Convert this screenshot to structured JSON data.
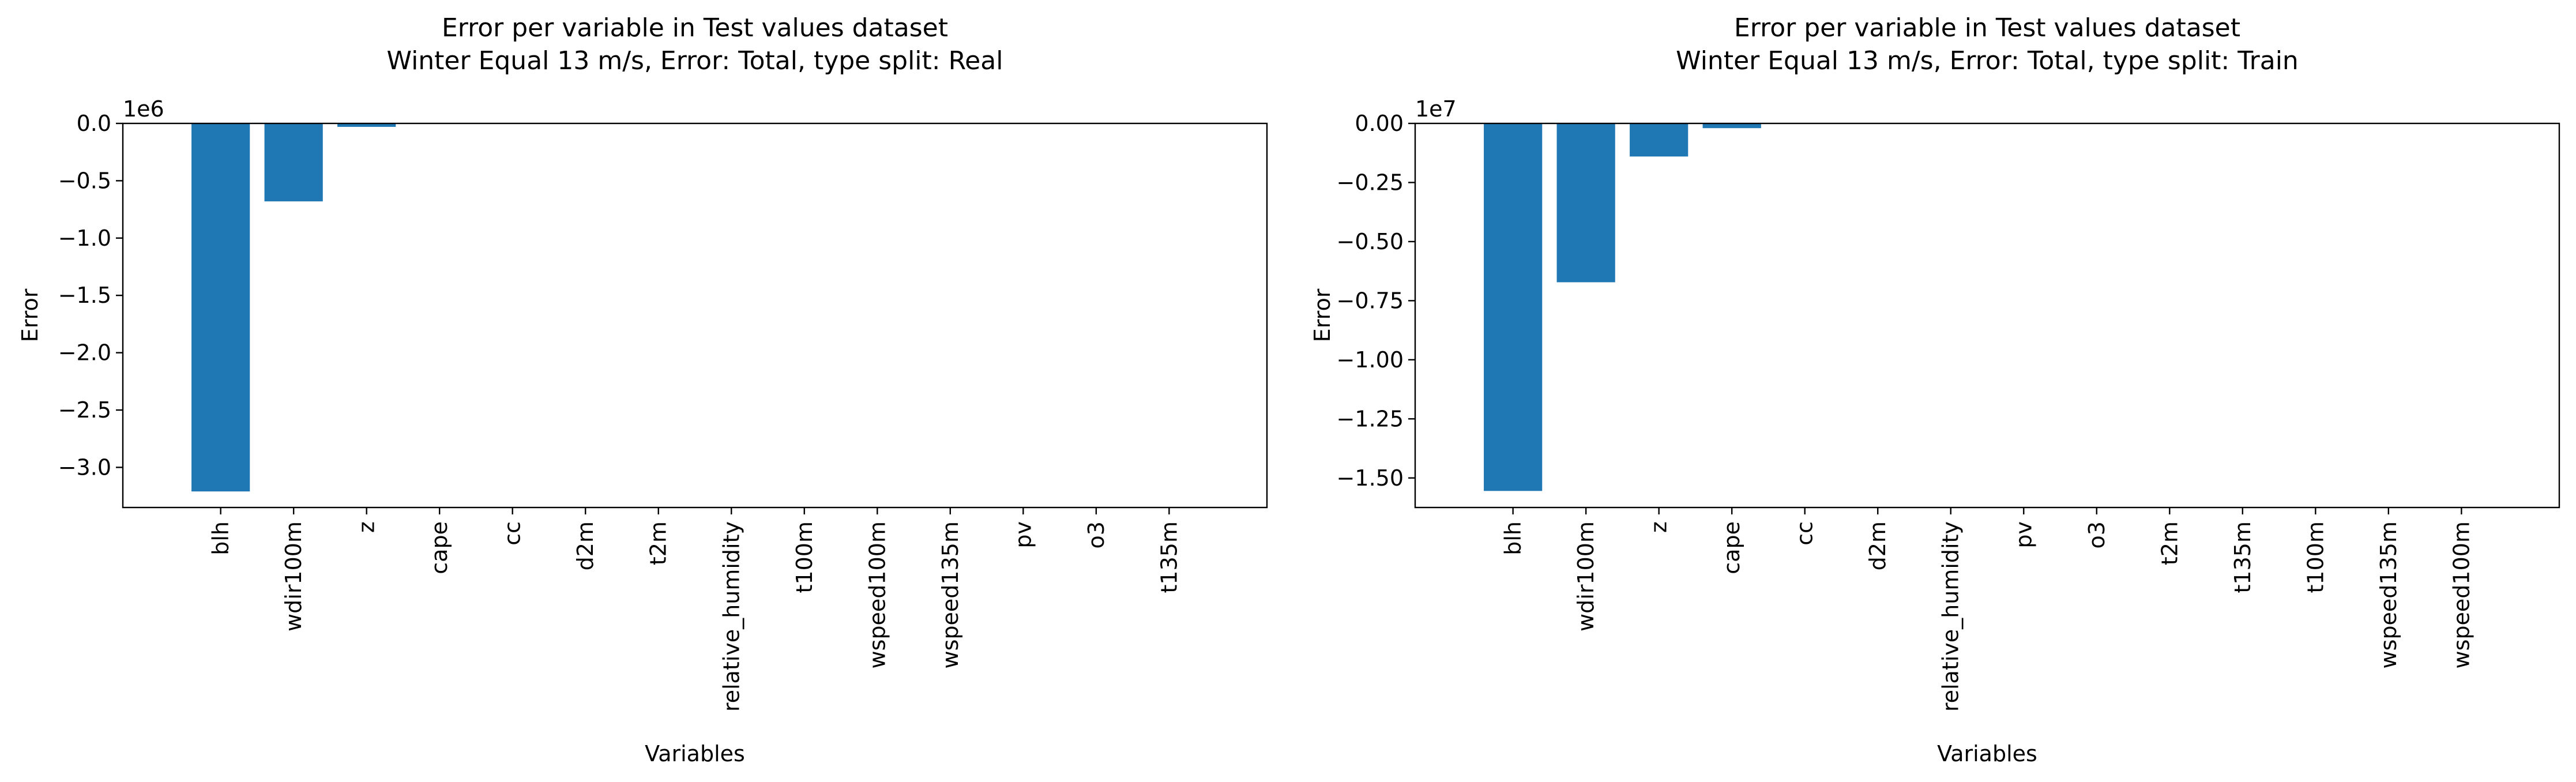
{
  "chart_data": [
    {
      "type": "bar",
      "title": "Error per variable in Test values dataset",
      "subtitle": "Winter Equal 13 m/s, Error: Total, type split: Real",
      "xlabel": "Variables",
      "ylabel": "Error",
      "y_offset_label": "1e6",
      "ylim": [
        -3.35,
        0.0
      ],
      "yticks": [
        0.0,
        -0.5,
        -1.0,
        -1.5,
        -2.0,
        -2.5,
        -3.0
      ],
      "ytick_labels": [
        "0.0",
        "−0.5",
        "−1.0",
        "−1.5",
        "−2.0",
        "−2.5",
        "−3.0"
      ],
      "categories": [
        "blh",
        "wdir100m",
        "z",
        "cape",
        "cc",
        "d2m",
        "t2m",
        "relative_humidity",
        "t100m",
        "wspeed100m",
        "wspeed135m",
        "pv",
        "o3",
        "t135m"
      ],
      "values": [
        -3.21,
        -0.68,
        -0.03,
        -0.001,
        -0.0008,
        -0.0005,
        -0.0003,
        -0.0002,
        -0.0002,
        -0.0001,
        -0.0001,
        -5e-05,
        -3e-05,
        -2e-05
      ],
      "bar_color": "#1f77b4",
      "grid": false
    },
    {
      "type": "bar",
      "title": "Error per variable in Test values dataset",
      "subtitle": "Winter Equal 13 m/s, Error: Total, type split: Train",
      "xlabel": "Variables",
      "ylabel": "Error",
      "y_offset_label": "1e7",
      "ylim": [
        -1.625,
        0.0
      ],
      "yticks": [
        0.0,
        -0.25,
        -0.5,
        -0.75,
        -1.0,
        -1.25,
        -1.5
      ],
      "ytick_labels": [
        "0.00",
        "−0.25",
        "−0.50",
        "−0.75",
        "−1.00",
        "−1.25",
        "−1.50"
      ],
      "categories": [
        "blh",
        "wdir100m",
        "z",
        "cape",
        "cc",
        "d2m",
        "relative_humidity",
        "pv",
        "o3",
        "t2m",
        "t135m",
        "t100m",
        "wspeed135m",
        "wspeed100m"
      ],
      "values": [
        -1.555,
        -0.672,
        -0.14,
        -0.02,
        -0.0005,
        -0.0004,
        -0.0003,
        -0.0002,
        -0.0002,
        -0.0001,
        -0.0001,
        -5e-05,
        -3e-05,
        -2e-05
      ],
      "bar_color": "#1f77b4",
      "grid": false
    }
  ]
}
